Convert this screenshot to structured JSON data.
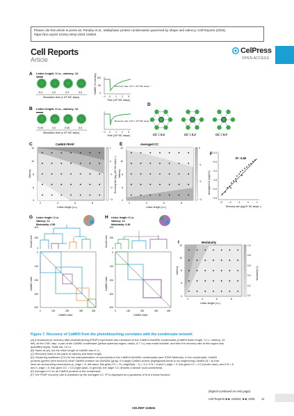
{
  "header": {
    "notice": "Please cite this article in press as: Pandey et al., Multiphasic protein condensation governed by shape and valency, Cell Reports (2025), https://doi.org/10.1016/j.celrep.2025.115504",
    "journal": "Cell Reports",
    "section": "Article",
    "publisher": "CelPress",
    "access": "OPEN ACCESS"
  },
  "figure": {
    "panel_labels": [
      "A",
      "B",
      "C",
      "D",
      "E",
      "F",
      "G",
      "H",
      "I"
    ],
    "A": {
      "title": "Linker length: 3 l.u., valency: 12",
      "times": [
        "−0.3",
        "0.0",
        "0.3",
        "3.0"
      ],
      "xaxis": "Simulation time (x 10⁶ MC steps)",
      "yaxis": "CaMKII (% intensity)",
      "recovery_text": "Recovery rate: 0.47 × 10⁶ MC steps⁻¹",
      "xticks": [
        "−1",
        "0",
        "1",
        "2",
        "3"
      ],
      "yticks": [
        "100",
        "50",
        "0"
      ],
      "plot_xlabel": "Time (10⁶ MC steps)"
    },
    "B": {
      "title": "Linker length: 6 l.u., valency: 12",
      "times": [
        "−0.05",
        "0.0",
        "0.05",
        "0.5"
      ],
      "xaxis": "Simulation time (x 10⁶ MC steps)",
      "recovery_text": "Recovery rate: 8.19 × 10⁶ MC steps⁻¹",
      "xticks": [
        "−1",
        "0",
        "1",
        "2",
        "3"
      ],
      "plot_xlabel": "Time (10⁶ MC steps)"
    },
    "C": {
      "title": "CaMKII FRAP",
      "xlabel": "Linker length (l.u.)",
      "ylabel": "Valency",
      "cbar_label": "Recovery rate (log₁₀(10⁶ MC steps)⁻¹)",
      "xticks": [
        "2",
        "4",
        "6",
        "8"
      ],
      "yticks": [
        "12",
        "10",
        "8",
        "6",
        "4"
      ],
      "cbar_ticks": [
        "1",
        "0",
        "−1",
        "−2",
        "−3"
      ]
    },
    "D": {
      "cc_labels": [
        "CC = 0.4",
        "CC = 0.2",
        "CC = 0.0"
      ]
    },
    "E": {
      "title": "Averaged CC",
      "xlabel": "Linker length (l.u.)",
      "ylabel": "Valency",
      "xticks": [
        "2",
        "4",
        "6",
        "8"
      ],
      "yticks": [
        "12",
        "10",
        "8",
        "6",
        "4"
      ],
      "cbar_ticks": [
        "0",
        "−1",
        "−2",
        "−3"
      ]
    },
    "F": {
      "r2": "R²: 0.80",
      "ylabel": "Averaged CC (log(CC))",
      "xlabel": "Recovery rate (log(10⁶ MC steps)⁻¹)",
      "xticks": [
        "−3",
        "−2",
        "−1",
        "0",
        "1"
      ],
      "yticks": [
        "0.0",
        "−0.5",
        "−1.0",
        "−1.5",
        "−2.0",
        "−2.5"
      ]
    },
    "G": {
      "info": [
        "Linker length: 3 l.u.",
        "Valency: 12",
        "Modularity: 0.56"
      ],
      "ylabel": "Cluster size",
      "mat_ylabel": "CaMKII index",
      "mat_xlabel": "CaMKII index",
      "ticks": [
        "0",
        "100",
        "200",
        "300",
        "400"
      ],
      "cticks": [
        "400",
        "200",
        "0"
      ]
    },
    "H": {
      "info": [
        "Linker length: 6 l.u.",
        "Valency: 12",
        "Modularity: 0.38"
      ],
      "ylabel": "Cluster size",
      "mat_ylabel": "CaMKII index",
      "mat_xlabel": "CaMKII index",
      "ticks": [
        "0",
        "100",
        "200",
        "300",
        "400"
      ],
      "cticks": [
        "400",
        "200",
        "0"
      ]
    },
    "I": {
      "title": "Modularity",
      "xlabel": "Linker length (l.u.)",
      "ylabel": "Valency",
      "xticks": [
        "2",
        "4",
        "6",
        "8"
      ],
      "yticks": [
        "12",
        "10",
        "8",
        "6",
        "4"
      ],
      "cbar_label": "Modularity (1)",
      "cbar_ticks": [
        "1.0",
        "0.8",
        "0.6",
        "0.4",
        "0.2",
        "0.0"
      ]
    },
    "colors": {
      "accent": "#1a9fd4",
      "green": "#35a94d",
      "orange": "#e8832a",
      "purple": "#8e3f9f",
      "gray": "#9e9e9e"
    }
  },
  "caption": {
    "title": "Figure 7.  Recovery of CaMKII from the photobleaching correlates with the condensate network",
    "lines": [
      "(A) A fluorescence recovery after photobleaching (FRAP) experiment was mimicked on the CaMKII-GluN2Bc condensates (CaMKII linker length, 3 l.u.; valency, 12;",
      "left). At the 0 MC step, a part of the CaMKII condensate (yellow spherical region; radius, 8.7 l.u.) was made invisible, and then the recovery rate at this region was",
      "quantified (right). Scale bar, 10 l.u.",
      "(B) Same as (A), but the linker length of CaMKII was 6 l.u.",
      "(C) Recovery rates in the plane of valency and linker length.",
      "(D) Clustering coefficient (CC) for the characterization of connectivity in the CaMKII-GluN2Bc condensates (see STAR Methods). In the condensate, CaMKII",
      "proteins (green) were bound to other CaMKII proteins via GluN2Bc (gray). If a target CaMKII protein (highlighted) binds to six neighboring CaMKII (N = 6) that",
      "have six surrounding connections (n_edge = 6, left case), this gives CC = 2n_edge/N(N − 1) = 0.4. If N = 6 and n_edge = 3, this gives CC = 0.2 (center case), and if N = 6",
      "and n_edge = 0, this gives CC = 0.0 (right case). In general, the larger CC denotes a denser local connectivity.",
      "(E) Averaged CC for all CaMKII proteins in the condensate.",
      "(F) The FRAP recovery rate is explained by the averaged CC. R² is displayed as a goodness of fit of a linear function."
    ],
    "continued": "(legend continued on next page)"
  },
  "footer": {
    "journal_line": "Cell Reports ■ ■, 115504, ■ ■, 2025",
    "page": "11",
    "code": "CELREP 115504"
  }
}
